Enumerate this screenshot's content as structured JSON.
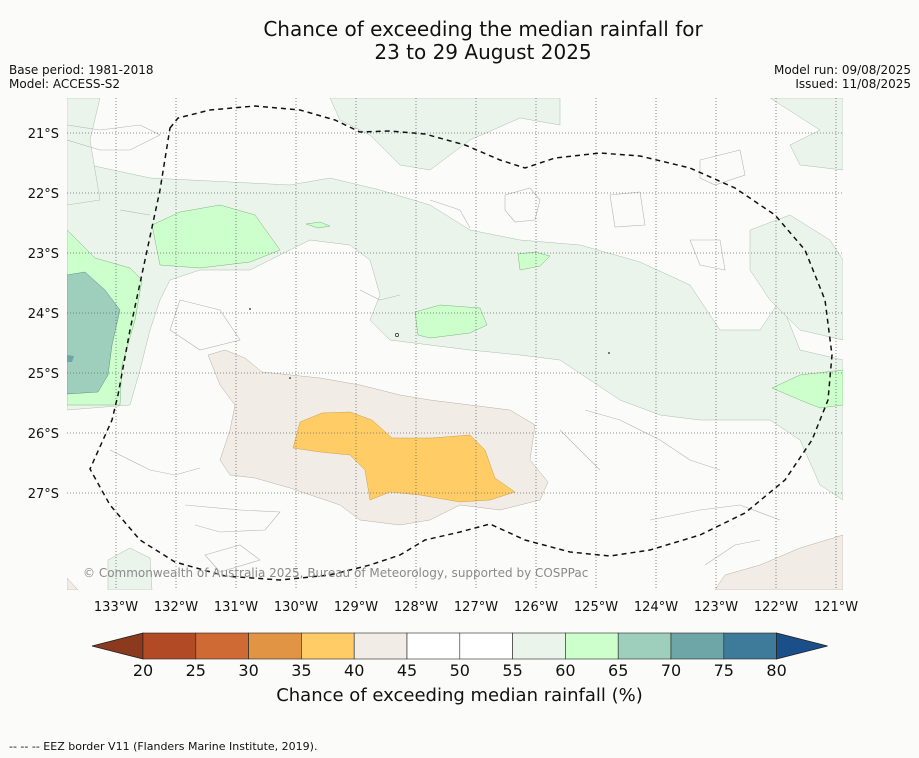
{
  "header": {
    "title_line1": "Chance of exceeding the median rainfall for",
    "title_line2": "23 to 29 August 2025",
    "base_period": "Base period: 1981-2018",
    "model": "Model: ACCESS-S2",
    "model_run": "Model run: 09/08/2025",
    "issued": "Issued: 11/08/2025"
  },
  "map": {
    "lat_labels": [
      "21°S",
      "22°S",
      "23°S",
      "24°S",
      "25°S",
      "26°S",
      "27°S"
    ],
    "lon_labels": [
      "133°W",
      "132°W",
      "131°W",
      "130°W",
      "129°W",
      "128°W",
      "127°W",
      "126°W",
      "125°W",
      "124°W",
      "123°W",
      "122°W",
      "121°W"
    ],
    "copyright": "© Commonwealth of Australia 2025, Bureau of Meteorology, supported by COSPPac",
    "region_fill_colors": {
      "35-40": "#ffcc66",
      "40-45": "#f2ece7",
      "55-60": "#ebf4eb",
      "60-65": "#ccffcc",
      "65-70": "#9ecfbd",
      "45-55": "#fbfcfa"
    }
  },
  "colorbar": {
    "ticks": [
      "20",
      "25",
      "30",
      "35",
      "40",
      "45",
      "50",
      "55",
      "60",
      "65",
      "70",
      "75",
      "80"
    ],
    "colors": [
      "#b24a25",
      "#cf6a35",
      "#e29445",
      "#ffcc66",
      "#f2ece7",
      "#ffffff",
      "#ffffff",
      "#ebf4eb",
      "#ccffcc",
      "#9ecfbd",
      "#6ea6a8",
      "#3e7a9a"
    ],
    "under_color": "#8b3a1e",
    "over_color": "#1b4f8a",
    "label": "Chance of exceeding median rainfall (%)"
  },
  "footnote": "-- -- -- EEZ border V11 (Flanders Marine Institute, 2019)."
}
